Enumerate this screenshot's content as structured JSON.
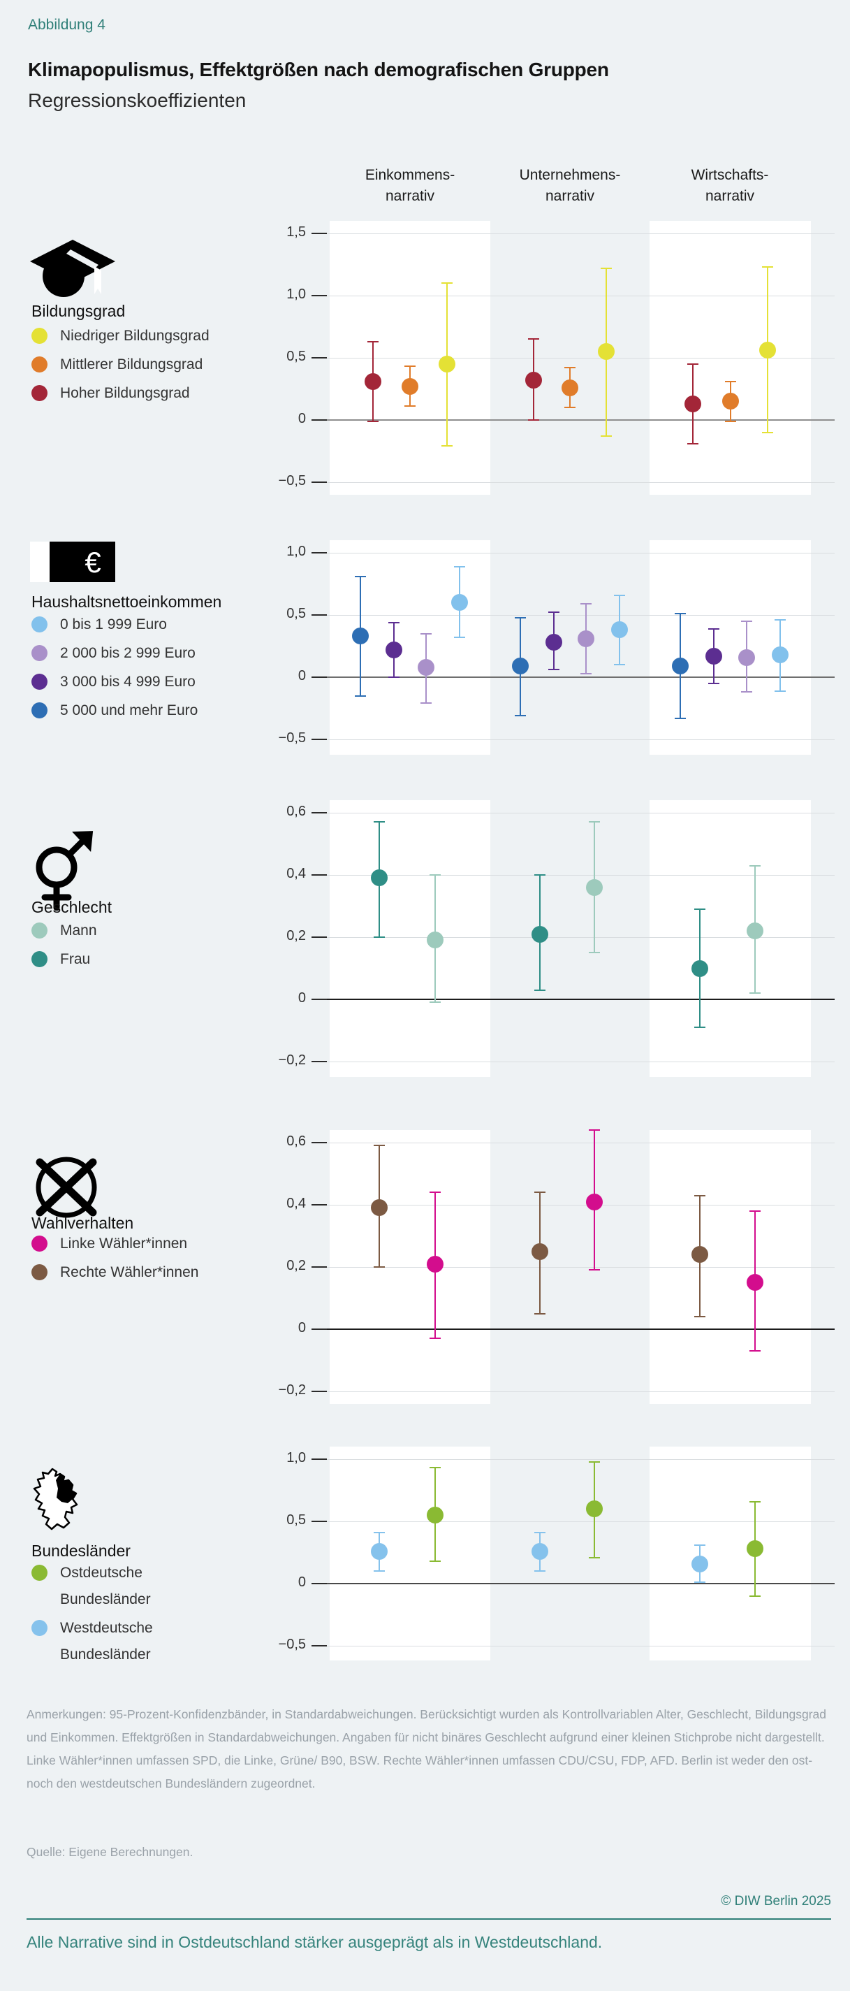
{
  "header": {
    "kicker": "Abbildung 4",
    "title": "Klimapopulismus, Effektgrößen nach demografischen Gruppen",
    "subtitle": "Regressionskoeffizienten"
  },
  "columns": [
    {
      "line1": "Einkommens-",
      "line2": "narrativ"
    },
    {
      "line1": "Unternehmens-",
      "line2": "narrativ"
    },
    {
      "line1": "Wirtschafts-",
      "line2": "narrativ"
    }
  ],
  "colors": {
    "background": "#eef2f4",
    "panel_white": "#ffffff",
    "accent_teal": "#2f7f78",
    "gridline": "#d9dde0",
    "notes_gray": "#9aa2a9"
  },
  "panels": [
    {
      "icon": "graduation-cap-icon",
      "legend_title": "Bildungsgrad",
      "legend": [
        {
          "label": "Niedriger Bildungsgrad",
          "color": "#e4e135"
        },
        {
          "label": "Mittlerer Bildungsgrad",
          "color": "#e07c2a"
        },
        {
          "label": "Hoher Bildungsgrad",
          "color": "#a32638"
        }
      ],
      "chart_data": {
        "type": "scatter",
        "subtype": "dot-and-whisker-95ci",
        "group": "Bildungsgrad",
        "categories": [
          "Einkommensnarrativ",
          "Unternehmensnarrativ",
          "Wirtschaftsnarrativ"
        ],
        "ylim": [
          -0.5,
          1.5
        ],
        "tick_values": [
          1.5,
          1.0,
          0.5,
          0,
          -0.5
        ],
        "tick_labels": [
          "1,5",
          "1,0",
          "0,5",
          "0",
          "−0,5"
        ],
        "series": [
          {
            "name": "Hoher Bildungsgrad",
            "color": "#a32638",
            "values": [
              0.31,
              0.32,
              0.13
            ],
            "ci_low": [
              -0.01,
              0.0,
              -0.19
            ],
            "ci_high": [
              0.63,
              0.65,
              0.45
            ]
          },
          {
            "name": "Mittlerer Bildungsgrad",
            "color": "#e07c2a",
            "values": [
              0.27,
              0.26,
              0.15
            ],
            "ci_low": [
              0.11,
              0.1,
              -0.01
            ],
            "ci_high": [
              0.43,
              0.42,
              0.31
            ]
          },
          {
            "name": "Niedriger Bildungsgrad",
            "color": "#e4e135",
            "values": [
              0.45,
              0.55,
              0.56
            ],
            "ci_low": [
              -0.21,
              -0.13,
              -0.1
            ],
            "ci_high": [
              1.1,
              1.22,
              1.23
            ]
          }
        ]
      }
    },
    {
      "icon": "banknote-icon",
      "legend_title": "Haushaltsnettoeinkommen",
      "legend": [
        {
          "label": "0 bis 1 999 Euro",
          "color": "#82c1ec"
        },
        {
          "label": "2 000 bis 2 999 Euro",
          "color": "#a990c9"
        },
        {
          "label": "3 000 bis 4 999 Euro",
          "color": "#5c2e91"
        },
        {
          "label": "5 000 und mehr Euro",
          "color": "#2d6eb4"
        }
      ],
      "chart_data": {
        "type": "scatter",
        "subtype": "dot-and-whisker-95ci",
        "group": "Haushaltsnettoeinkommen",
        "categories": [
          "Einkommensnarrativ",
          "Unternehmensnarrativ",
          "Wirtschaftsnarrativ"
        ],
        "ylim": [
          -0.5,
          1.0
        ],
        "tick_values": [
          1.0,
          0.5,
          0,
          -0.5
        ],
        "tick_labels": [
          "1,0",
          "0,5",
          "0",
          "−0,5"
        ],
        "series": [
          {
            "name": "5 000 und mehr Euro",
            "color": "#2d6eb4",
            "values": [
              0.33,
              0.09,
              0.09
            ],
            "ci_low": [
              -0.15,
              -0.31,
              -0.33
            ],
            "ci_high": [
              0.81,
              0.48,
              0.51
            ]
          },
          {
            "name": "3 000 bis 4 999 Euro",
            "color": "#5c2e91",
            "values": [
              0.22,
              0.28,
              0.17
            ],
            "ci_low": [
              0.0,
              0.06,
              -0.05
            ],
            "ci_high": [
              0.44,
              0.52,
              0.39
            ]
          },
          {
            "name": "2 000 bis 2 999 Euro",
            "color": "#a990c9",
            "values": [
              0.08,
              0.31,
              0.16
            ],
            "ci_low": [
              -0.21,
              0.03,
              -0.12
            ],
            "ci_high": [
              0.35,
              0.59,
              0.45
            ]
          },
          {
            "name": "0 bis 1 999 Euro",
            "color": "#82c1ec",
            "values": [
              0.6,
              0.38,
              0.18
            ],
            "ci_low": [
              0.32,
              0.1,
              -0.11
            ],
            "ci_high": [
              0.89,
              0.66,
              0.46
            ]
          }
        ]
      }
    },
    {
      "icon": "gender-icon",
      "legend_title": "Geschlecht",
      "legend": [
        {
          "label": "Mann",
          "color": "#9dcabc"
        },
        {
          "label": "Frau",
          "color": "#2f8e86"
        }
      ],
      "chart_data": {
        "type": "scatter",
        "subtype": "dot-and-whisker-95ci",
        "group": "Geschlecht",
        "categories": [
          "Einkommensnarrativ",
          "Unternehmensnarrativ",
          "Wirtschaftsnarrativ"
        ],
        "ylim": [
          -0.2,
          0.6
        ],
        "tick_values": [
          0.6,
          0.4,
          0.2,
          0,
          -0.2
        ],
        "tick_labels": [
          "0,6",
          "0,4",
          "0,2",
          "0",
          "−0,2"
        ],
        "series": [
          {
            "name": "Frau",
            "color": "#2f8e86",
            "values": [
              0.39,
              0.21,
              0.1
            ],
            "ci_low": [
              0.2,
              0.03,
              -0.09
            ],
            "ci_high": [
              0.57,
              0.4,
              0.29
            ]
          },
          {
            "name": "Mann",
            "color": "#9dcabc",
            "values": [
              0.19,
              0.36,
              0.22
            ],
            "ci_low": [
              -0.01,
              0.15,
              0.02
            ],
            "ci_high": [
              0.4,
              0.57,
              0.43
            ]
          }
        ]
      }
    },
    {
      "icon": "ballot-icon",
      "legend_title": "Wahlverhalten",
      "legend": [
        {
          "label": "Linke Wähler*innen",
          "color": "#d30d8d"
        },
        {
          "label": "Rechte Wähler*innen",
          "color": "#7c5a43"
        }
      ],
      "chart_data": {
        "type": "scatter",
        "subtype": "dot-and-whisker-95ci",
        "group": "Wahlverhalten",
        "categories": [
          "Einkommensnarrativ",
          "Unternehmensnarrativ",
          "Wirtschaftsnarrativ"
        ],
        "ylim": [
          -0.2,
          0.6
        ],
        "tick_values": [
          0.6,
          0.4,
          0.2,
          0,
          -0.2
        ],
        "tick_labels": [
          "0,6",
          "0,4",
          "0,2",
          "0",
          "−0,2"
        ],
        "series": [
          {
            "name": "Rechte Wähler*innen",
            "color": "#7c5a43",
            "values": [
              0.39,
              0.25,
              0.24
            ],
            "ci_low": [
              0.2,
              0.05,
              0.04
            ],
            "ci_high": [
              0.59,
              0.44,
              0.43
            ]
          },
          {
            "name": "Linke Wähler*innen",
            "color": "#d30d8d",
            "values": [
              0.21,
              0.41,
              0.15
            ],
            "ci_low": [
              -0.03,
              0.19,
              -0.07
            ],
            "ci_high": [
              0.44,
              0.64,
              0.38
            ]
          }
        ]
      }
    },
    {
      "icon": "germany-map-icon",
      "legend_title": "Bundesländer",
      "legend": [
        {
          "label": "Ostdeutsche",
          "label2": "Bundesländer",
          "color": "#8aba33"
        },
        {
          "label": "Westdeutsche",
          "label2": "Bundesländer",
          "color": "#85c2ec"
        }
      ],
      "chart_data": {
        "type": "scatter",
        "subtype": "dot-and-whisker-95ci",
        "group": "Bundesländer",
        "categories": [
          "Einkommensnarrativ",
          "Unternehmensnarrativ",
          "Wirtschaftsnarrativ"
        ],
        "ylim": [
          -0.5,
          1.0
        ],
        "tick_values": [
          1.0,
          0.5,
          0,
          -0.5
        ],
        "tick_labels": [
          "1,0",
          "0,5",
          "0",
          "−0,5"
        ],
        "series": [
          {
            "name": "Westdeutsche Bundesländer",
            "color": "#85c2ec",
            "values": [
              0.26,
              0.26,
              0.16
            ],
            "ci_low": [
              0.1,
              0.1,
              0.01
            ],
            "ci_high": [
              0.41,
              0.41,
              0.31
            ]
          },
          {
            "name": "Ostdeutsche Bundesländer",
            "color": "#8aba33",
            "values": [
              0.55,
              0.6,
              0.28
            ],
            "ci_low": [
              0.18,
              0.21,
              -0.1
            ],
            "ci_high": [
              0.93,
              0.98,
              0.66
            ]
          }
        ]
      }
    }
  ],
  "notes": "Anmerkungen: 95-Prozent-Konfidenzbänder, in Standardabweichungen. Berücksichtigt wurden als Kontrollvariablen Alter, Geschlecht, Bildungsgrad und Einkommen. Effektgrößen in Standardabweichungen. Angaben für nicht binäres Geschlecht aufgrund einer kleinen Stichprobe nicht dargestellt. Linke Wähler*innen umfassen SPD, die Linke, Grüne/ B90, BSW. Rechte Wähler*innen umfassen CDU/CSU, FDP, AFD. Berlin ist weder den ost- noch den westdeutschen Bundesländern zugeordnet.",
  "source": "Quelle: Eigene Berechnungen.",
  "copyright": "© DIW Berlin 2025",
  "message": "Alle Narrative sind in Ostdeutschland stärker ausgeprägt als in Westdeutschland."
}
